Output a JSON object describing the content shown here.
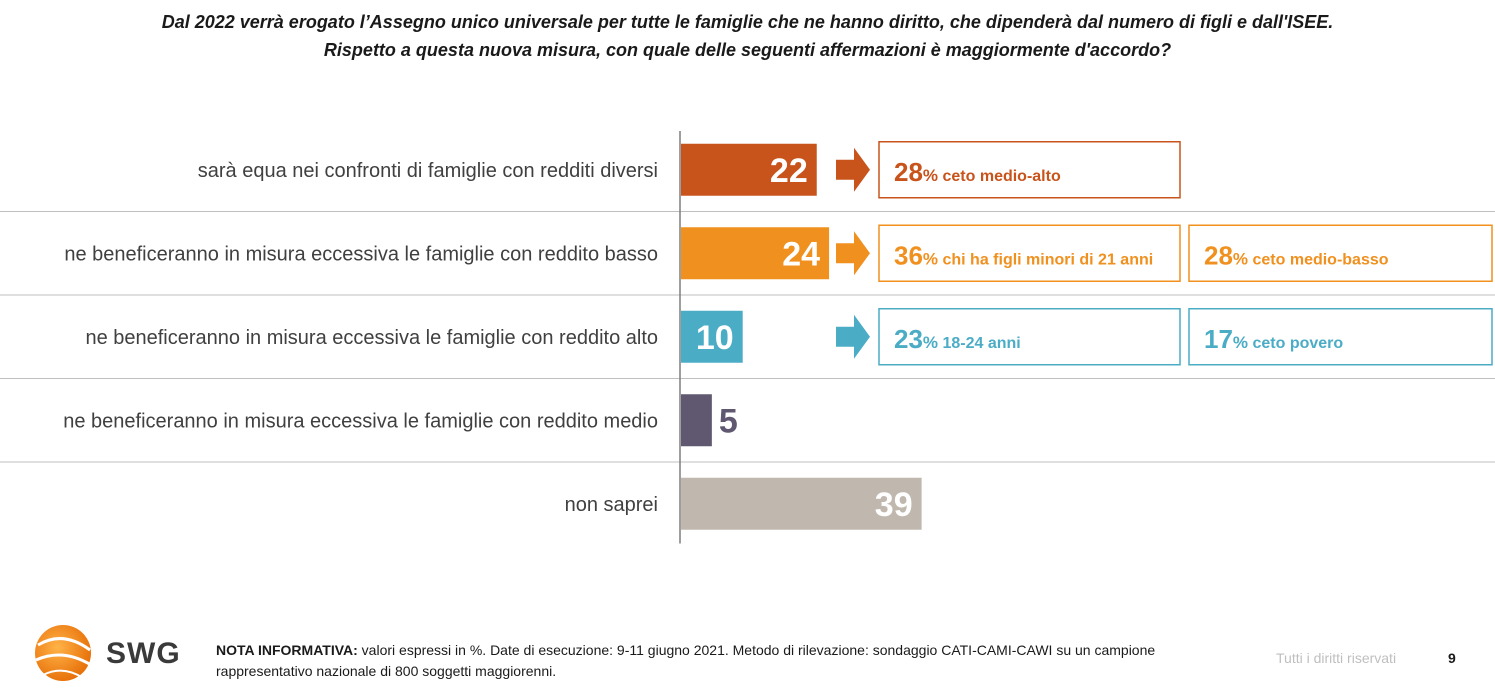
{
  "title": {
    "line1": "Dal 2022 verrà erogato l’Assegno unico universale per tutte le famiglie che ne hanno diritto, che dipenderà dal numero di figli e dall'ISEE.",
    "line2": "Rispetto a questa nuova misura, con quale delle seguenti affermazioni è maggiormente d'accordo?"
  },
  "chart_data": {
    "type": "bar",
    "orientation": "horizontal",
    "categories": [
      "sarà equa nei confronti di famiglie con redditi diversi",
      "ne beneficeranno in misura eccessiva le famiglie con reddito basso",
      "ne beneficeranno in misura eccessiva le famiglie con reddito alto",
      "ne beneficeranno in misura eccessiva le famiglie con reddito medio",
      "non saprei"
    ],
    "values": [
      22,
      24,
      10,
      5,
      39
    ],
    "colors": [
      "#c8531b",
      "#f0901e",
      "#4bacc6",
      "#5f5870",
      "#c0b8ae"
    ],
    "xlim": [
      0,
      100
    ],
    "callouts": [
      [
        {
          "value": "28",
          "pct": "%",
          "text": " ceto medio-alto"
        }
      ],
      [
        {
          "value": "36",
          "pct": "%",
          "text": " chi ha figli minori di 21 anni"
        },
        {
          "value": "28",
          "pct": "%",
          "text": " ceto medio-basso"
        }
      ],
      [
        {
          "value": "23",
          "pct": "%",
          "text": " 18-24 anni"
        },
        {
          "value": "17",
          "pct": "%",
          "text": " ceto povero"
        }
      ],
      [],
      []
    ]
  },
  "footer": {
    "note_label": "NOTA INFORMATIVA:",
    "note_text": " valori espressi in %. Date di esecuzione: 9-11 giugno 2021. Metodo di rilevazione: sondaggio CATI-CAMI-CAWI su un campione rappresentativo nazionale di 800 soggetti maggiorenni.",
    "rights": "Tutti i diritti riservati",
    "page": "9",
    "logo_text": "SWG"
  }
}
